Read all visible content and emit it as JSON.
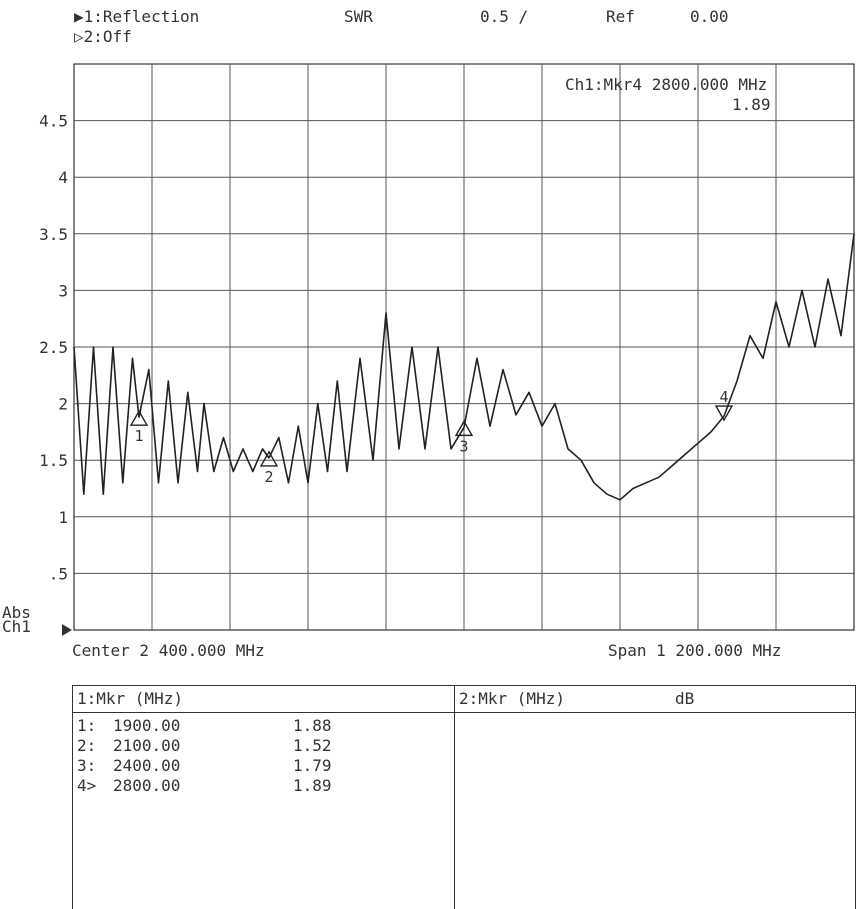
{
  "header": {
    "ch1_label": "▶1:Reflection",
    "ch2_label": "▷2:Off",
    "format": "SWR",
    "scale": "0.5 /",
    "ref_label": "Ref",
    "ref_value": "0.00"
  },
  "marker_readout": {
    "line1": "Ch1:Mkr4 2800.000 MHz",
    "line2": "1.89"
  },
  "axis": {
    "abs_label": "Abs",
    "ch_label": "Ch1",
    "center": "Center 2 400.000 MHz",
    "span": "Span 1 200.000 MHz"
  },
  "chart_data": {
    "type": "line",
    "title": "",
    "xlabel": "",
    "ylabel": "",
    "x_range_mhz": [
      1800,
      3000
    ],
    "ylim": [
      0,
      5
    ],
    "y_ticks": [
      ".5",
      "1",
      "1.5",
      "2",
      "2.5",
      "3",
      "3.5",
      "4",
      "4.5"
    ],
    "grid": true,
    "series": [
      {
        "x": [
          1800,
          1815,
          1830,
          1845,
          1860,
          1875,
          1890,
          1900,
          1915,
          1930,
          1945,
          1960,
          1975,
          1990,
          2000,
          2015,
          2030,
          2045,
          2060,
          2075,
          2090,
          2100,
          2115,
          2130,
          2145,
          2160,
          2175,
          2190,
          2205,
          2220,
          2240,
          2260,
          2280,
          2300,
          2320,
          2340,
          2360,
          2380,
          2400,
          2420,
          2440,
          2460,
          2480,
          2500,
          2520,
          2540,
          2560,
          2580,
          2600,
          2620,
          2640,
          2660,
          2680,
          2700,
          2720,
          2740,
          2760,
          2780,
          2800,
          2820,
          2840,
          2860,
          2880,
          2900,
          2920,
          2940,
          2960,
          2980,
          3000
        ],
        "y": [
          2.5,
          1.2,
          2.5,
          1.2,
          2.5,
          1.3,
          2.4,
          1.88,
          2.3,
          1.3,
          2.2,
          1.3,
          2.1,
          1.4,
          2.0,
          1.4,
          1.7,
          1.4,
          1.6,
          1.4,
          1.6,
          1.52,
          1.7,
          1.3,
          1.8,
          1.3,
          2.0,
          1.4,
          2.2,
          1.4,
          2.4,
          1.5,
          2.8,
          1.6,
          2.5,
          1.6,
          2.5,
          1.6,
          1.79,
          2.4,
          1.8,
          2.3,
          1.9,
          2.1,
          1.8,
          2.0,
          1.6,
          1.5,
          1.3,
          1.2,
          1.15,
          1.25,
          1.3,
          1.35,
          1.45,
          1.55,
          1.65,
          1.75,
          1.89,
          2.2,
          2.6,
          2.4,
          2.9,
          2.5,
          3.0,
          2.5,
          3.1,
          2.6,
          3.5
        ]
      }
    ],
    "markers": [
      {
        "id": "1",
        "freq_mhz": 1900,
        "value": 1.88
      },
      {
        "id": "2",
        "freq_mhz": 2100,
        "value": 1.52
      },
      {
        "id": "3",
        "freq_mhz": 2400,
        "value": 1.79
      },
      {
        "id": "4",
        "freq_mhz": 2800,
        "value": 1.89
      }
    ]
  },
  "table": {
    "left_header": "1:Mkr (MHz)",
    "right_header": "2:Mkr (MHz)",
    "right_unit": "dB",
    "rows": [
      {
        "id": "1:",
        "freq": "1900.00",
        "value": "1.88"
      },
      {
        "id": "2:",
        "freq": "2100.00",
        "value": "1.52"
      },
      {
        "id": "3:",
        "freq": "2400.00",
        "value": "1.79"
      },
      {
        "id": "4>",
        "freq": "2800.00",
        "value": "1.89"
      }
    ]
  }
}
